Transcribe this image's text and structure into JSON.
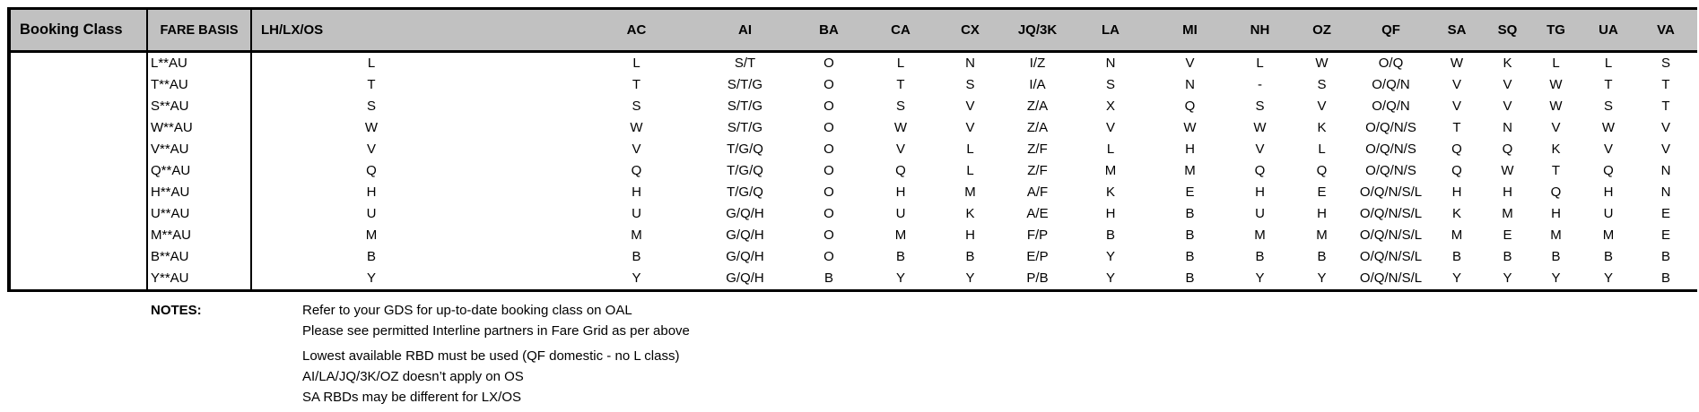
{
  "table": {
    "header": {
      "booking_class": "Booking Class",
      "fare_basis": "FARE BASIS",
      "airlines": [
        "LH/LX/OS",
        "AC",
        "AI",
        "BA",
        "CA",
        "CX",
        "JQ/3K",
        "LA",
        "MI",
        "NH",
        "OZ",
        "QF",
        "SA",
        "SQ",
        "TG",
        "UA",
        "VA"
      ]
    },
    "rows": [
      {
        "fare_basis": "L**AU",
        "values": [
          "L",
          "L",
          "S/T",
          "O",
          "L",
          "N",
          "I/Z",
          "N",
          "V",
          "L",
          "W",
          "O/Q",
          "W",
          "K",
          "L",
          "L",
          "S"
        ]
      },
      {
        "fare_basis": "T**AU",
        "values": [
          "T",
          "T",
          "S/T/G",
          "O",
          "T",
          "S",
          "I/A",
          "S",
          "N",
          "-",
          "S",
          "O/Q/N",
          "V",
          "V",
          "W",
          "T",
          "T"
        ]
      },
      {
        "fare_basis": "S**AU",
        "values": [
          "S",
          "S",
          "S/T/G",
          "O",
          "S",
          "V",
          "Z/A",
          "X",
          "Q",
          "S",
          "V",
          "O/Q/N",
          "V",
          "V",
          "W",
          "S",
          "T"
        ]
      },
      {
        "fare_basis": "W**AU",
        "values": [
          "W",
          "W",
          "S/T/G",
          "O",
          "W",
          "V",
          "Z/A",
          "V",
          "W",
          "W",
          "K",
          "O/Q/N/S",
          "T",
          "N",
          "V",
          "W",
          "V"
        ]
      },
      {
        "fare_basis": "V**AU",
        "values": [
          "V",
          "V",
          "T/G/Q",
          "O",
          "V",
          "L",
          "Z/F",
          "L",
          "H",
          "V",
          "L",
          "O/Q/N/S",
          "Q",
          "Q",
          "K",
          "V",
          "V"
        ]
      },
      {
        "fare_basis": "Q**AU",
        "values": [
          "Q",
          "Q",
          "T/G/Q",
          "O",
          "Q",
          "L",
          "Z/F",
          "M",
          "M",
          "Q",
          "Q",
          "O/Q/N/S",
          "Q",
          "W",
          "T",
          "Q",
          "N"
        ]
      },
      {
        "fare_basis": "H**AU",
        "values": [
          "H",
          "H",
          "T/G/Q",
          "O",
          "H",
          "M",
          "A/F",
          "K",
          "E",
          "H",
          "E",
          "O/Q/N/S/L",
          "H",
          "H",
          "Q",
          "H",
          "N"
        ]
      },
      {
        "fare_basis": "U**AU",
        "values": [
          "U",
          "U",
          "G/Q/H",
          "O",
          "U",
          "K",
          "A/E",
          "H",
          "B",
          "U",
          "H",
          "O/Q/N/S/L",
          "K",
          "M",
          "H",
          "U",
          "E"
        ]
      },
      {
        "fare_basis": "M**AU",
        "values": [
          "M",
          "M",
          "G/Q/H",
          "O",
          "M",
          "H",
          "F/P",
          "B",
          "B",
          "M",
          "M",
          "O/Q/N/S/L",
          "M",
          "E",
          "M",
          "M",
          "E"
        ]
      },
      {
        "fare_basis": "B**AU",
        "values": [
          "B",
          "B",
          "G/Q/H",
          "O",
          "B",
          "B",
          "E/P",
          "Y",
          "B",
          "B",
          "B",
          "O/Q/N/S/L",
          "B",
          "B",
          "B",
          "B",
          "B"
        ]
      },
      {
        "fare_basis": "Y**AU",
        "values": [
          "Y",
          "Y",
          "G/Q/H",
          "B",
          "Y",
          "Y",
          "P/B",
          "Y",
          "B",
          "Y",
          "Y",
          "O/Q/N/S/L",
          "Y",
          "Y",
          "Y",
          "Y",
          "B"
        ]
      }
    ]
  },
  "notes": {
    "label": "NOTES:",
    "lines": [
      "Refer to your GDS for up-to-date booking class on OAL",
      "Please see permitted Interline partners in Fare Grid as per above",
      "Lowest available RBD must be used (QF domestic - no L class)",
      "AI/LA/JQ/3K/OZ doesn’t apply on OS",
      "SA RBDs may be different for LX/OS"
    ]
  },
  "colors": {
    "header_bg": "#c1c1c1",
    "border": "#000000",
    "text": "#000000"
  }
}
